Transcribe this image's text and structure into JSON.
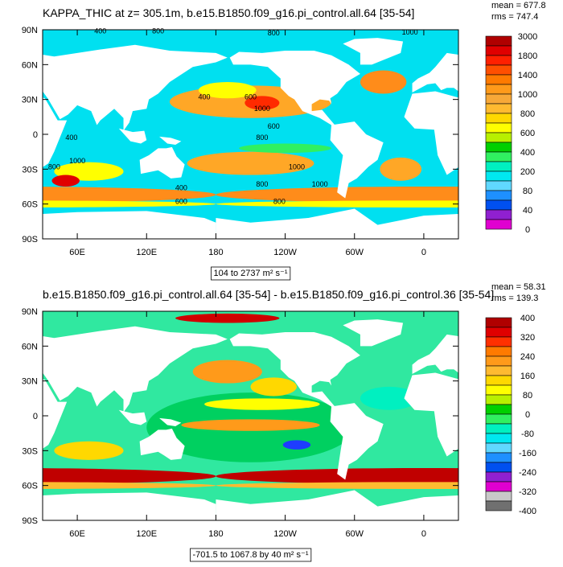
{
  "panels": [
    {
      "title": "KAPPA_THIC at z= 305.1m, b.e15.B1850.f09_g16.pi_control.all.64 [35-54]",
      "stats": [
        "mean = 677.8",
        "rms = 747.4"
      ],
      "lat_labels": [
        "90N",
        "60N",
        "30N",
        "0",
        "30S",
        "60S",
        "90S"
      ],
      "lon_labels": [
        "60E",
        "120E",
        "180",
        "120W",
        "60W",
        "0"
      ],
      "colorbar_labels": [
        3000,
        1800,
        1400,
        1000,
        800,
        600,
        400,
        200,
        80,
        40,
        0
      ],
      "colorbar_colors": [
        "#b00000",
        "#e00000",
        "#ff2000",
        "#ff4f00",
        "#ff7a00",
        "#ff9a1a",
        "#f7a838",
        "#ffba30",
        "#ffd800",
        "#ffff00",
        "#b8f000",
        "#00d000",
        "#30f060",
        "#00f0c0",
        "#00e8f0",
        "#60d8ff",
        "#1e90ff",
        "#0050f0",
        "#9020d0",
        "#e000d0"
      ],
      "range_label": "104 to 2737 m² s⁻¹",
      "contour_labels": [
        400,
        800,
        1000,
        800,
        600,
        400,
        1000,
        600,
        800,
        400,
        1000,
        800,
        1000,
        800,
        1000,
        400,
        800,
        600
      ]
    },
    {
      "title": "b.e15.B1850.f09_g16.pi_control.all.64 [35-54] - b.e15.B1850.f09_g16.pi_control.36 [35-54]",
      "stats": [
        "mean = 58.31",
        "rms = 139.3"
      ],
      "lat_labels": [
        "90N",
        "60N",
        "30N",
        "0",
        "30S",
        "60S",
        "90S"
      ],
      "lon_labels": [
        "60E",
        "120E",
        "180",
        "120W",
        "60W",
        "0"
      ],
      "colorbar_labels": [
        400,
        320,
        240,
        160,
        80,
        0,
        -80,
        -160,
        -240,
        -320,
        -400
      ],
      "colorbar_colors": [
        "#b00000",
        "#e00000",
        "#ff3000",
        "#ff7a00",
        "#ff9a1a",
        "#ffba30",
        "#ffd800",
        "#ffff00",
        "#b8f000",
        "#00d000",
        "#30f060",
        "#00f0c0",
        "#00e8f0",
        "#60d8ff",
        "#1e90ff",
        "#0050f0",
        "#9020d0",
        "#e000d0",
        "#c8c8c8",
        "#707070"
      ],
      "range_label": "-701.5 to 1067.8 by 40 m² s⁻¹"
    }
  ]
}
